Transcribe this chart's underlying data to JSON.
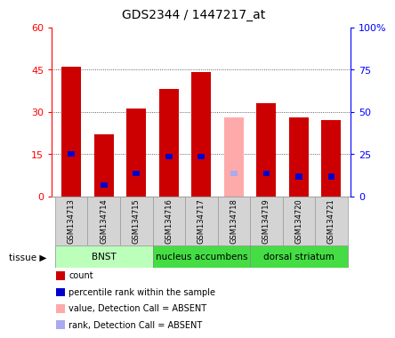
{
  "title": "GDS2344 / 1447217_at",
  "samples": [
    "GSM134713",
    "GSM134714",
    "GSM134715",
    "GSM134716",
    "GSM134717",
    "GSM134718",
    "GSM134719",
    "GSM134720",
    "GSM134721"
  ],
  "count_values": [
    46,
    22,
    31,
    38,
    44,
    0,
    33,
    28,
    27
  ],
  "absent_value": [
    0,
    0,
    0,
    0,
    0,
    28,
    0,
    0,
    0
  ],
  "rank_values": [
    15,
    4,
    8,
    14,
    14,
    0,
    8,
    7,
    7
  ],
  "absent_rank": [
    0,
    0,
    0,
    0,
    0,
    8,
    0,
    0,
    0
  ],
  "is_absent": [
    false,
    false,
    false,
    false,
    false,
    true,
    false,
    false,
    false
  ],
  "bar_color": "#cc0000",
  "absent_bar_color": "#ffaaaa",
  "rank_color": "#0000cc",
  "absent_rank_color": "#aaaaee",
  "ylim_left": [
    0,
    60
  ],
  "ylim_right": [
    0,
    100
  ],
  "yticks_left": [
    0,
    15,
    30,
    45,
    60
  ],
  "yticks_right": [
    0,
    25,
    50,
    75,
    100
  ],
  "ytick_labels_right": [
    "0",
    "25",
    "50",
    "75",
    "100%"
  ],
  "bg_color": "#ffffff",
  "tissue_defs": [
    {
      "label": "BNST",
      "start": 0,
      "end": 3,
      "color": "#bbffbb"
    },
    {
      "label": "nucleus accumbens",
      "start": 3,
      "end": 6,
      "color": "#44dd44"
    },
    {
      "label": "dorsal striatum",
      "start": 6,
      "end": 9,
      "color": "#44dd44"
    }
  ],
  "legend_items": [
    {
      "label": "count",
      "color": "#cc0000"
    },
    {
      "label": "percentile rank within the sample",
      "color": "#0000cc"
    },
    {
      "label": "value, Detection Call = ABSENT",
      "color": "#ffaaaa"
    },
    {
      "label": "rank, Detection Call = ABSENT",
      "color": "#aaaaee"
    }
  ]
}
